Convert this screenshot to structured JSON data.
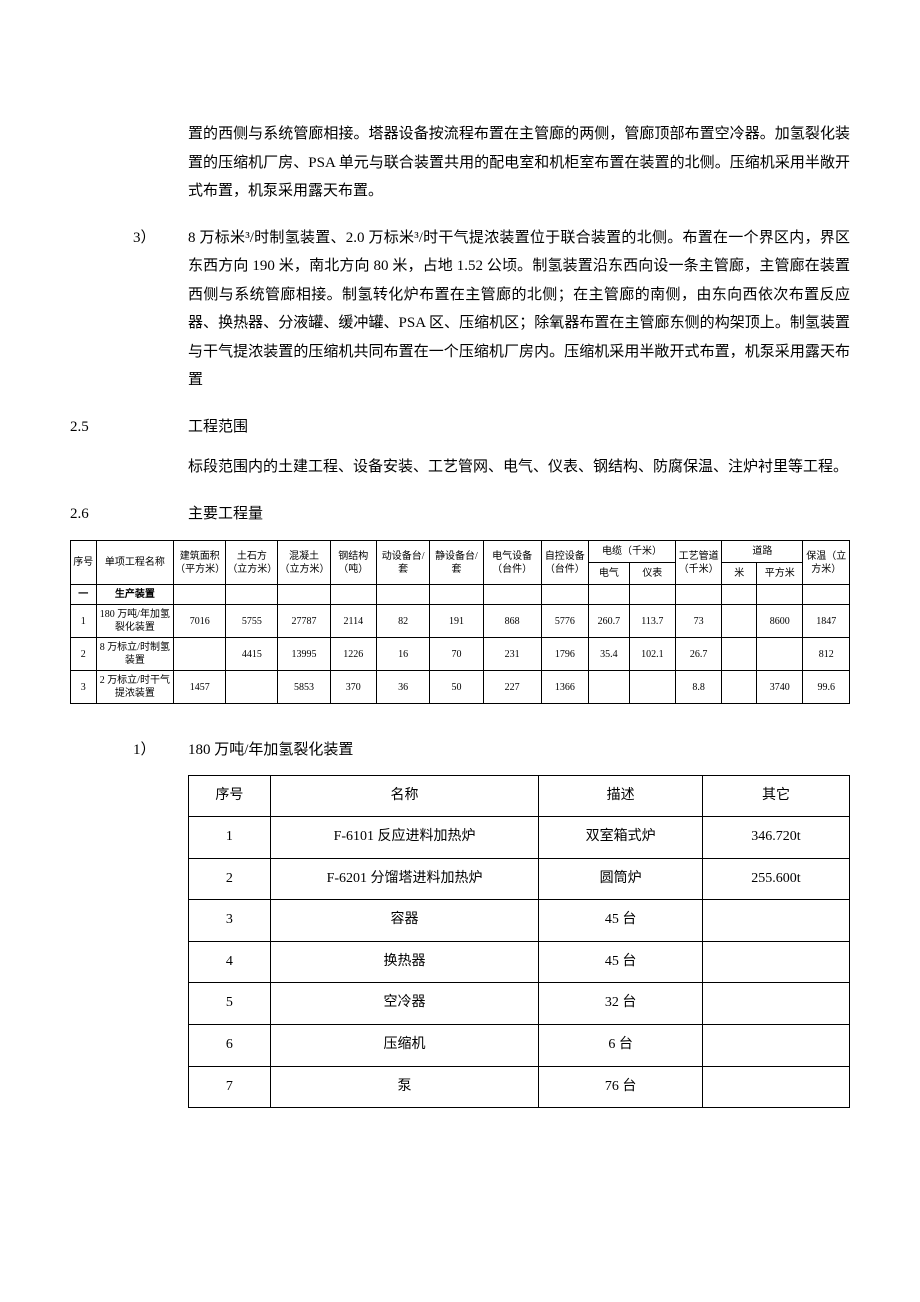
{
  "para_top": "置的西侧与系统管廊相接。塔器设备按流程布置在主管廊的两侧，管廊顶部布置空冷器。加氢裂化装置的压缩机厂房、PSA 单元与联合装置共用的配电室和机柜室布置在装置的北侧。压缩机采用半敞开式布置，机泵采用露天布置。",
  "item3_num": "3）",
  "item3_body": "8 万标米³/时制氢装置、2.0 万标米³/时干气提浓装置位于联合装置的北侧。布置在一个界区内，界区东西方向 190 米，南北方向 80 米，占地 1.52 公顷。制氢装置沿东西向设一条主管廊，主管廊在装置西侧与系统管廊相接。制氢转化炉布置在主管廊的北侧；在主管廊的南侧，由东向西依次布置反应器、换热器、分液罐、缓冲罐、PSA 区、压缩机区；除氧器布置在主管廊东侧的构架顶上。制氢装置与干气提浓装置的压缩机共同布置在一个压缩机厂房内。压缩机采用半敞开式布置，机泵采用露天布置",
  "s25_num": "2.5",
  "s25_title": "工程范围",
  "s25_body": "标段范围内的土建工程、设备安装、工艺管网、电气、仪表、钢结构、防腐保温、注炉衬里等工程。",
  "s26_num": "2.6",
  "s26_title": "主要工程量",
  "t1": {
    "h_seq": "序号",
    "h_name": "单项工程名称",
    "h_area": "建筑面积（平方米）",
    "h_earth": "土石方（立方米）",
    "h_concrete": "混凝土（立方米）",
    "h_steel": "钢结构（吨）",
    "h_dyn": "动设备台/套",
    "h_static": "静设备台/套",
    "h_elec": "电气设备（台件）",
    "h_ctrl": "自控设备（台件）",
    "h_cable": "电缆（千米）",
    "h_cable_e": "电气",
    "h_cable_i": "仪表",
    "h_pipe": "工艺管道（千米）",
    "h_road": "道路",
    "h_road_m": "米",
    "h_road_sm": "平方米",
    "h_insul": "保温（立方米）",
    "section1_num": "一",
    "section1_name": "生产装置",
    "r1": {
      "n": "1",
      "name": "180 万吨/年加氢裂化装置",
      "area": "7016",
      "earth": "5755",
      "conc": "27787",
      "steel": "2114",
      "dyn": "82",
      "stat": "191",
      "elec": "868",
      "ctrl": "5776",
      "ce": "260.7",
      "ci": "113.7",
      "pipe": "73",
      "rm": "",
      "rsm": "8600",
      "ins": "1847"
    },
    "r2": {
      "n": "2",
      "name": "8 万标立/时制氢装置",
      "area": "",
      "earth": "4415",
      "conc": "13995",
      "steel": "1226",
      "dyn": "16",
      "stat": "70",
      "elec": "231",
      "ctrl": "1796",
      "ce": "35.4",
      "ci": "102.1",
      "pipe": "26.7",
      "rm": "",
      "rsm": "",
      "ins": "812"
    },
    "r3": {
      "n": "3",
      "name": "2 万标立/时干气提浓装置",
      "area": "1457",
      "earth": "",
      "conc": "5853",
      "steel": "370",
      "dyn": "36",
      "stat": "50",
      "elec": "227",
      "ctrl": "1366",
      "ce": "",
      "ci": "",
      "pipe": "8.8",
      "rm": "",
      "rsm": "3740",
      "ins": "99.6"
    }
  },
  "sub1_num": "1）",
  "sub1_title": "180 万吨/年加氢裂化装置",
  "t2": {
    "h1": "序号",
    "h2": "名称",
    "h3": "描述",
    "h4": "其它",
    "rows": [
      {
        "n": "1",
        "name": "F-6101 反应进料加热炉",
        "desc": "双室箱式炉",
        "other": "346.720t"
      },
      {
        "n": "2",
        "name": "F-6201 分馏塔进料加热炉",
        "desc": "圆筒炉",
        "other": "255.600t"
      },
      {
        "n": "3",
        "name": "容器",
        "desc": "45 台",
        "other": ""
      },
      {
        "n": "4",
        "name": "换热器",
        "desc": "45 台",
        "other": ""
      },
      {
        "n": "5",
        "name": "空冷器",
        "desc": "32 台",
        "other": ""
      },
      {
        "n": "6",
        "name": "压缩机",
        "desc": "6 台",
        "other": ""
      },
      {
        "n": "7",
        "name": "泵",
        "desc": "76 台",
        "other": ""
      }
    ]
  }
}
